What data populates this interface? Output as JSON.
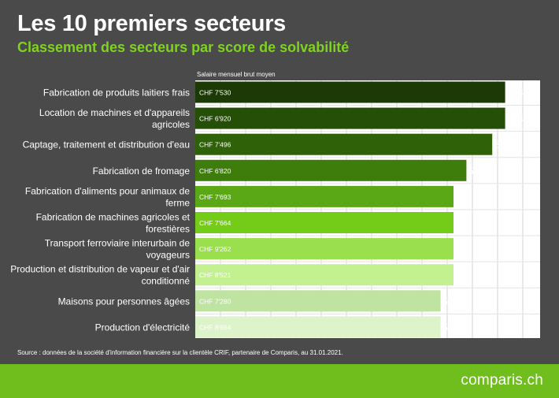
{
  "title": "Les 10 premiers secteurs",
  "subtitle": "Classement des secteurs par score de solvabilité",
  "source": "Source : données de la société d'information financière sur la clientèle CRIF, partenaire de Comparis, au 31.01.2021.",
  "brand": "comparis.ch",
  "chart_data": {
    "type": "bar",
    "orientation": "horizontal",
    "column_header": "Salaire mensuel brut moyen",
    "categories": [
      [
        "Fabrication de produits laitiers frais"
      ],
      [
        "Location de machines et d'appareils",
        "agricoles"
      ],
      [
        "Captage, traitement et distribution d'eau"
      ],
      [
        "Fabrication de fromage"
      ],
      [
        "Fabrication d'aliments pour animaux de",
        "ferme"
      ],
      [
        "Fabrication de machines agricoles et",
        "forestières"
      ],
      [
        "Transport ferroviaire interurbain de",
        "voyageurs"
      ],
      [
        "Production et distribution de vapeur et d'air",
        "conditionné"
      ],
      [
        "Maisons pour personnes âgées"
      ],
      [
        "Production d'électricité"
      ]
    ],
    "values": [
      554,
      554,
      553,
      551,
      550,
      550,
      550,
      550,
      549,
      549
    ],
    "bar_labels": [
      "CHF 7'530",
      "CHF 6'920",
      "CHF 7'496",
      "CHF 6'820",
      "CHF 7'693",
      "CHF 7'664",
      "CHF 9'262",
      "CHF 8'521",
      "CHF 7'280",
      "CHF 8'664"
    ],
    "colors": [
      "#1c3a06",
      "#254f07",
      "#2f6108",
      "#3e7d0b",
      "#5aa815",
      "#74cc18",
      "#9ae04e",
      "#c4f190",
      "#bfe3a1",
      "#ddf3c9"
    ],
    "grid": true
  }
}
